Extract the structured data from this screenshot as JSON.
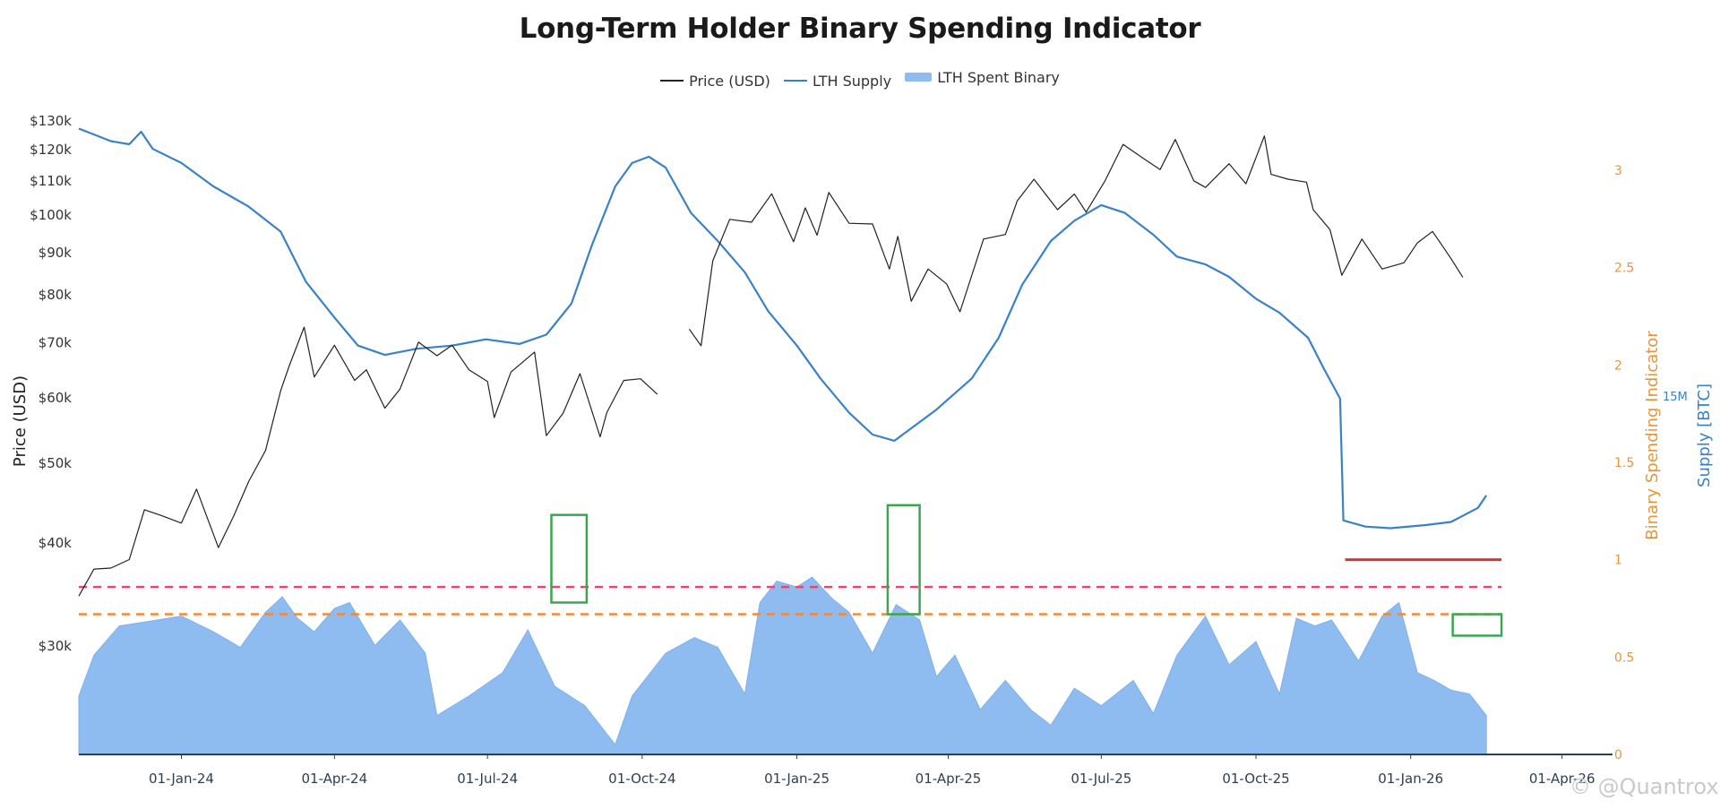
{
  "chart_data": {
    "type": "line",
    "title": "Long-Term Holder Binary Spending Indicator",
    "legend": [
      {
        "label": "Price (USD)",
        "color": "#222222",
        "kind": "line"
      },
      {
        "label": "LTH Supply",
        "color": "#3a82c6",
        "kind": "line"
      },
      {
        "label": "LTH Spent Binary",
        "color": "#8fbcf0",
        "kind": "area"
      }
    ],
    "legend_position": "top-center",
    "x_axis": {
      "range": [
        "2023-11-01",
        "2026-05-01"
      ],
      "ticks": [
        {
          "date": "2024-01-01",
          "label": "01-Jan-24"
        },
        {
          "date": "2024-04-01",
          "label": "01-Apr-24"
        },
        {
          "date": "2024-07-01",
          "label": "01-Jul-24"
        },
        {
          "date": "2024-10-01",
          "label": "01-Oct-24"
        },
        {
          "date": "2025-01-01",
          "label": "01-Jan-25"
        },
        {
          "date": "2025-04-01",
          "label": "01-Apr-25"
        },
        {
          "date": "2025-07-01",
          "label": "01-Jul-25"
        },
        {
          "date": "2025-10-01",
          "label": "01-Oct-25"
        },
        {
          "date": "2026-01-01",
          "label": "01-Jan-26"
        },
        {
          "date": "2026-04-01",
          "label": "01-Apr-26"
        }
      ]
    },
    "y_left": {
      "label": "Price (USD)",
      "scale": "log",
      "range": [
        22000,
        135000
      ],
      "ticks": [
        {
          "v": 30000,
          "label": "$30k"
        },
        {
          "v": 40000,
          "label": "$40k"
        },
        {
          "v": 50000,
          "label": "$50k"
        },
        {
          "v": 60000,
          "label": "$60k"
        },
        {
          "v": 70000,
          "label": "$70k"
        },
        {
          "v": 80000,
          "label": "$80k"
        },
        {
          "v": 90000,
          "label": "$90k"
        },
        {
          "v": 100000,
          "label": "$100k"
        },
        {
          "v": 110000,
          "label": "$110k"
        },
        {
          "v": 120000,
          "label": "$120k"
        },
        {
          "v": 130000,
          "label": "$130k"
        }
      ]
    },
    "y_right_binary": {
      "label": "Binary Spending Indicator",
      "color": "#e8953a",
      "range": [
        0,
        3.0
      ],
      "ticks": [
        {
          "v": 0,
          "label": "0"
        },
        {
          "v": 0.5,
          "label": "0.5"
        },
        {
          "v": 1,
          "label": "1"
        },
        {
          "v": 1.5,
          "label": "1.5"
        },
        {
          "v": 2,
          "label": "2"
        },
        {
          "v": 2.5,
          "label": "2.5"
        },
        {
          "v": 3,
          "label": "3"
        }
      ]
    },
    "y_right_supply": {
      "label": "Supply [BTC]",
      "color": "#3a82c6",
      "ticks": [
        {
          "v": 15,
          "label": "15M"
        }
      ],
      "range_m": [
        13.2,
        16.3
      ]
    },
    "reference_lines": [
      {
        "axis": "binary",
        "value": 0.86,
        "color": "#e5486a",
        "style": "dashed"
      },
      {
        "axis": "binary",
        "value": 0.72,
        "color": "#f08a3a",
        "style": "dashed"
      }
    ],
    "annotations": {
      "boxes": [
        {
          "start": "2024-08-08",
          "end": "2024-08-29",
          "ymin": 0.78,
          "ymax": 1.23
        },
        {
          "start": "2025-02-24",
          "end": "2025-03-15",
          "ymin": 0.72,
          "ymax": 1.28
        },
        {
          "start": "2026-01-26",
          "end": "2026-02-24",
          "ymin": 0.61,
          "ymax": 0.72
        }
      ],
      "hline": {
        "start": "2025-11-23",
        "end": "2026-02-24",
        "value": 1.0,
        "color": "#e03030"
      }
    },
    "series": [
      {
        "name": "Price (USD)",
        "axis": "price",
        "points": [
          [
            "2023-11-01",
            34500
          ],
          [
            "2023-11-10",
            37200
          ],
          [
            "2023-11-20",
            37300
          ],
          [
            "2023-12-01",
            38200
          ],
          [
            "2023-12-10",
            43900
          ],
          [
            "2023-12-20",
            43200
          ],
          [
            "2024-01-01",
            42300
          ],
          [
            "2024-01-10",
            46500
          ],
          [
            "2024-01-23",
            39500
          ],
          [
            "2024-02-01",
            43100
          ],
          [
            "2024-02-10",
            47500
          ],
          [
            "2024-02-20",
            51800
          ],
          [
            "2024-02-29",
            61200
          ],
          [
            "2024-03-05",
            65500
          ],
          [
            "2024-03-14",
            73100
          ],
          [
            "2024-03-20",
            63600
          ],
          [
            "2024-04-01",
            69500
          ],
          [
            "2024-04-13",
            63000
          ],
          [
            "2024-04-20",
            64900
          ],
          [
            "2024-05-01",
            58300
          ],
          [
            "2024-05-10",
            61500
          ],
          [
            "2024-05-21",
            70100
          ],
          [
            "2024-06-01",
            67500
          ],
          [
            "2024-06-10",
            69500
          ],
          [
            "2024-06-20",
            64900
          ],
          [
            "2024-07-01",
            62800
          ],
          [
            "2024-07-05",
            56800
          ],
          [
            "2024-07-15",
            64500
          ],
          [
            "2024-07-29",
            68200
          ],
          [
            "2024-08-05",
            54000
          ],
          [
            "2024-08-15",
            57500
          ],
          [
            "2024-08-25",
            64200
          ],
          [
            "2024-09-06",
            53800
          ],
          [
            "2024-09-10",
            57600
          ],
          [
            "2024-09-20",
            63000
          ],
          [
            "2024-09-30",
            63300
          ],
          [
            "2024-10-10",
            60600
          ],
          [
            "2024-10-29",
            72700
          ],
          [
            "2024-11-05",
            69400
          ],
          [
            "2024-11-12",
            88000
          ],
          [
            "2024-11-22",
            98800
          ],
          [
            "2024-12-05",
            98000
          ],
          [
            "2024-12-17",
            106100
          ],
          [
            "2024-12-30",
            92800
          ],
          [
            "2025-01-06",
            102000
          ],
          [
            "2025-01-13",
            94500
          ],
          [
            "2025-01-20",
            106500
          ],
          [
            "2025-02-01",
            97700
          ],
          [
            "2025-02-15",
            97500
          ],
          [
            "2025-02-25",
            86000
          ],
          [
            "2025-03-02",
            94200
          ],
          [
            "2025-03-10",
            78600
          ],
          [
            "2025-03-20",
            86000
          ],
          [
            "2025-03-31",
            82500
          ],
          [
            "2025-04-08",
            76300
          ],
          [
            "2025-04-22",
            93500
          ],
          [
            "2025-05-05",
            94700
          ],
          [
            "2025-05-12",
            104000
          ],
          [
            "2025-05-22",
            110500
          ],
          [
            "2025-06-05",
            101500
          ],
          [
            "2025-06-15",
            106000
          ],
          [
            "2025-06-22",
            100800
          ],
          [
            "2025-07-03",
            109800
          ],
          [
            "2025-07-14",
            121800
          ],
          [
            "2025-07-25",
            117500
          ],
          [
            "2025-08-05",
            113500
          ],
          [
            "2025-08-14",
            123500
          ],
          [
            "2025-08-25",
            110000
          ],
          [
            "2025-09-01",
            108000
          ],
          [
            "2025-09-15",
            115400
          ],
          [
            "2025-09-25",
            109100
          ],
          [
            "2025-10-06",
            124700
          ],
          [
            "2025-10-10",
            112000
          ],
          [
            "2025-10-20",
            110500
          ],
          [
            "2025-10-31",
            109600
          ],
          [
            "2025-11-04",
            101500
          ],
          [
            "2025-11-14",
            96000
          ],
          [
            "2025-11-21",
            84500
          ],
          [
            "2025-12-03",
            93500
          ],
          [
            "2025-12-15",
            86000
          ],
          [
            "2025-12-28",
            87500
          ],
          [
            "2026-01-05",
            92500
          ],
          [
            "2026-01-14",
            95500
          ],
          [
            "2026-01-25",
            88500
          ],
          [
            "2026-02-01",
            84000
          ]
        ]
      },
      {
        "name": "LTH Supply",
        "axis": "supply",
        "unit": "M BTC",
        "points": [
          [
            "2023-11-01",
            16.05
          ],
          [
            "2023-11-20",
            15.97
          ],
          [
            "2023-12-01",
            15.95
          ],
          [
            "2023-12-08",
            16.03
          ],
          [
            "2023-12-15",
            15.92
          ],
          [
            "2024-01-01",
            15.83
          ],
          [
            "2024-01-20",
            15.68
          ],
          [
            "2024-02-10",
            15.55
          ],
          [
            "2024-02-29",
            15.39
          ],
          [
            "2024-03-15",
            15.07
          ],
          [
            "2024-04-01",
            14.84
          ],
          [
            "2024-04-15",
            14.66
          ],
          [
            "2024-05-01",
            14.6
          ],
          [
            "2024-05-20",
            14.64
          ],
          [
            "2024-06-10",
            14.66
          ],
          [
            "2024-06-30",
            14.7
          ],
          [
            "2024-07-20",
            14.67
          ],
          [
            "2024-08-05",
            14.73
          ],
          [
            "2024-08-20",
            14.93
          ],
          [
            "2024-09-01",
            15.3
          ],
          [
            "2024-09-15",
            15.68
          ],
          [
            "2024-09-25",
            15.83
          ],
          [
            "2024-10-05",
            15.87
          ],
          [
            "2024-10-15",
            15.8
          ],
          [
            "2024-10-30",
            15.51
          ],
          [
            "2024-11-15",
            15.33
          ],
          [
            "2024-12-01",
            15.13
          ],
          [
            "2024-12-15",
            14.88
          ],
          [
            "2025-01-01",
            14.66
          ],
          [
            "2025-01-15",
            14.45
          ],
          [
            "2025-02-01",
            14.23
          ],
          [
            "2025-02-15",
            14.09
          ],
          [
            "2025-02-28",
            14.05
          ],
          [
            "2025-03-10",
            14.13
          ],
          [
            "2025-03-25",
            14.25
          ],
          [
            "2025-04-15",
            14.45
          ],
          [
            "2025-05-01",
            14.71
          ],
          [
            "2025-05-15",
            15.05
          ],
          [
            "2025-06-01",
            15.33
          ],
          [
            "2025-06-15",
            15.46
          ],
          [
            "2025-07-01",
            15.56
          ],
          [
            "2025-07-15",
            15.51
          ],
          [
            "2025-08-01",
            15.37
          ],
          [
            "2025-08-15",
            15.23
          ],
          [
            "2025-09-01",
            15.18
          ],
          [
            "2025-09-15",
            15.1
          ],
          [
            "2025-10-01",
            14.96
          ],
          [
            "2025-10-15",
            14.87
          ],
          [
            "2025-11-01",
            14.71
          ],
          [
            "2025-11-10",
            14.52
          ],
          [
            "2025-11-20",
            14.32
          ],
          [
            "2025-11-22",
            13.54
          ],
          [
            "2025-12-05",
            13.5
          ],
          [
            "2025-12-20",
            13.49
          ],
          [
            "2026-01-10",
            13.51
          ],
          [
            "2026-01-25",
            13.53
          ],
          [
            "2026-02-10",
            13.62
          ],
          [
            "2026-02-15",
            13.7
          ]
        ]
      },
      {
        "name": "LTH Spent Binary",
        "axis": "binary",
        "kind": "area",
        "points": [
          [
            "2023-11-01",
            0.3
          ],
          [
            "2023-11-10",
            0.51
          ],
          [
            "2023-11-25",
            0.66
          ],
          [
            "2023-12-10",
            0.68
          ],
          [
            "2024-01-01",
            0.71
          ],
          [
            "2024-01-20",
            0.63
          ],
          [
            "2024-02-05",
            0.55
          ],
          [
            "2024-02-20",
            0.73
          ],
          [
            "2024-03-01",
            0.81
          ],
          [
            "2024-03-10",
            0.7
          ],
          [
            "2024-03-20",
            0.63
          ],
          [
            "2024-04-01",
            0.75
          ],
          [
            "2024-04-10",
            0.78
          ],
          [
            "2024-04-25",
            0.56
          ],
          [
            "2024-05-10",
            0.69
          ],
          [
            "2024-05-25",
            0.52
          ],
          [
            "2024-06-01",
            0.2
          ],
          [
            "2024-06-20",
            0.3
          ],
          [
            "2024-07-10",
            0.42
          ],
          [
            "2024-07-25",
            0.64
          ],
          [
            "2024-08-10",
            0.35
          ],
          [
            "2024-08-28",
            0.25
          ],
          [
            "2024-09-15",
            0.05
          ],
          [
            "2024-09-25",
            0.3
          ],
          [
            "2024-10-15",
            0.52
          ],
          [
            "2024-11-01",
            0.6
          ],
          [
            "2024-11-15",
            0.55
          ],
          [
            "2024-12-01",
            0.31
          ],
          [
            "2024-12-10",
            0.78
          ],
          [
            "2024-12-20",
            0.89
          ],
          [
            "2025-01-01",
            0.86
          ],
          [
            "2025-01-10",
            0.91
          ],
          [
            "2025-01-22",
            0.8
          ],
          [
            "2025-02-01",
            0.73
          ],
          [
            "2025-02-15",
            0.52
          ],
          [
            "2025-03-01",
            0.77
          ],
          [
            "2025-03-15",
            0.69
          ],
          [
            "2025-03-25",
            0.4
          ],
          [
            "2025-04-05",
            0.51
          ],
          [
            "2025-04-20",
            0.23
          ],
          [
            "2025-05-05",
            0.38
          ],
          [
            "2025-05-20",
            0.23
          ],
          [
            "2025-06-01",
            0.15
          ],
          [
            "2025-06-15",
            0.34
          ],
          [
            "2025-07-01",
            0.25
          ],
          [
            "2025-07-20",
            0.38
          ],
          [
            "2025-08-01",
            0.21
          ],
          [
            "2025-08-15",
            0.51
          ],
          [
            "2025-09-01",
            0.71
          ],
          [
            "2025-09-15",
            0.46
          ],
          [
            "2025-10-01",
            0.58
          ],
          [
            "2025-10-15",
            0.31
          ],
          [
            "2025-10-25",
            0.7
          ],
          [
            "2025-11-05",
            0.66
          ],
          [
            "2025-11-15",
            0.69
          ],
          [
            "2025-12-01",
            0.48
          ],
          [
            "2025-12-15",
            0.71
          ],
          [
            "2025-12-25",
            0.78
          ],
          [
            "2026-01-05",
            0.42
          ],
          [
            "2026-01-15",
            0.38
          ],
          [
            "2026-01-25",
            0.33
          ],
          [
            "2026-02-05",
            0.31
          ],
          [
            "2026-02-15",
            0.2
          ]
        ]
      }
    ]
  },
  "watermark": "© @Quantrox"
}
